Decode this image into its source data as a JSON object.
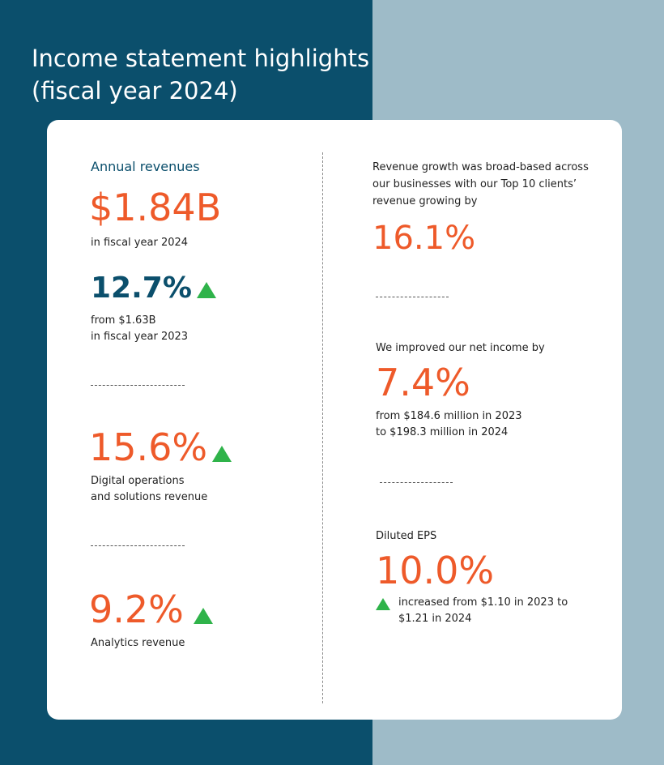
{
  "title": {
    "line1": "Income statement highlights",
    "line2": "(fiscal year 2024)"
  },
  "colors": {
    "navy": "#0b4f6c",
    "light_blue": "#9ebbc8",
    "orange": "#ee5a2a",
    "green": "#2fb34a"
  },
  "left": {
    "annual": {
      "label": "Annual revenues",
      "value": "$1.84B",
      "note": "in fiscal year 2024"
    },
    "growth": {
      "value": "12.7%",
      "note_line1": "from $1.63B",
      "note_line2": "in fiscal year 2023"
    },
    "digital": {
      "value": "15.6%",
      "note_line1": "Digital operations",
      "note_line2": "and solutions revenue"
    },
    "analytics": {
      "value": "9.2%",
      "note": "Analytics revenue"
    }
  },
  "right": {
    "top10": {
      "text_line1": "Revenue growth was broad-based across",
      "text_line2": "our businesses with our Top 10 clients’",
      "text_line3": "revenue growing by",
      "value": "16.1%"
    },
    "net_income": {
      "label": "We improved our net income by",
      "value": "7.4%",
      "note_line1": "from $184.6 million in 2023",
      "note_line2": "to $198.3 million in 2024"
    },
    "eps": {
      "label": "Diluted EPS",
      "value": "10.0%",
      "note_line1": "increased from $1.10 in 2023 to",
      "note_line2": "$1.21 in 2024"
    }
  }
}
